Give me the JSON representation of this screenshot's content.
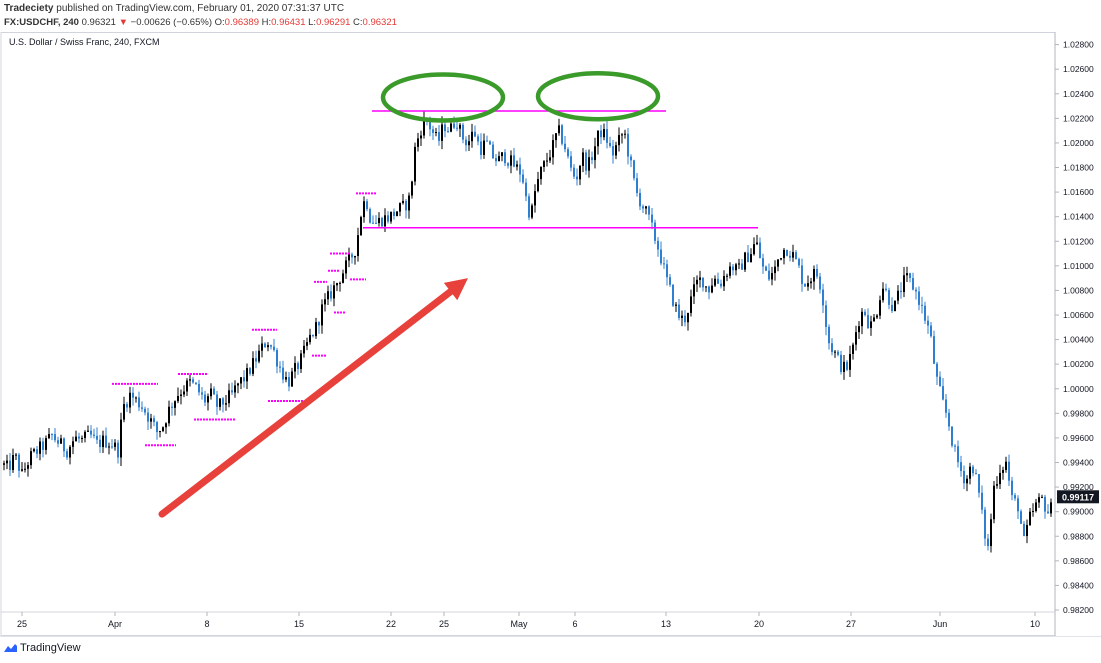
{
  "header": {
    "publisher": "Tradeciety",
    "published_text": "published on TradingView.com, February 01, 2020 07:31:37 UTC",
    "symbol": "FX:USDCHF, 240",
    "last": "0.96321",
    "change": "−0.00626 (−0.65%)",
    "o_label": "O:",
    "o_value": "0.96389",
    "h_label": "H:",
    "h_value": "0.96431",
    "l_label": "L:",
    "l_value": "0.96291",
    "c_label": "C:",
    "c_value": "0.96321"
  },
  "footer": {
    "brand": "TradingView"
  },
  "colors": {
    "bull": "#000000",
    "bear": "#2f7fd0",
    "levels": "#ff00ff",
    "circles": "#3a9a2a",
    "arrow": "#e8403a",
    "price_tag": "#131722"
  },
  "chart_data": {
    "type": "candlestick",
    "title": "U.S. Dollar / Swiss Franc, 240, FXCM",
    "x_ticks": [
      "25",
      "Apr",
      "8",
      "15",
      "22",
      "25",
      "May",
      "6",
      "13",
      "20",
      "27",
      "Jun",
      "10"
    ],
    "y_ticks": [
      "1.02800",
      "1.02600",
      "1.02400",
      "1.02200",
      "1.02000",
      "1.01800",
      "1.01600",
      "1.01400",
      "1.01200",
      "1.01000",
      "1.00800",
      "1.00600",
      "1.00400",
      "1.00200",
      "1.00000",
      "0.99800",
      "0.99600",
      "0.99400",
      "0.99200",
      "0.99000",
      "0.98800",
      "0.98600",
      "0.98400",
      "0.98200"
    ],
    "ylim": [
      0.982,
      1.0287
    ],
    "last_price": "0.99117",
    "path": [
      [
        0,
        0.994
      ],
      [
        8,
        0.9935
      ],
      [
        15,
        0.9945
      ],
      [
        22,
        0.993
      ],
      [
        30,
        0.9944
      ],
      [
        38,
        0.995
      ],
      [
        45,
        0.9955
      ],
      [
        52,
        0.9962
      ],
      [
        60,
        0.9955
      ],
      [
        67,
        0.995
      ],
      [
        75,
        0.996
      ],
      [
        82,
        0.9958
      ],
      [
        90,
        0.9962
      ],
      [
        97,
        0.9955
      ],
      [
        104,
        0.9958
      ],
      [
        112,
        0.9955
      ],
      [
        118,
        0.995
      ],
      [
        123,
        0.9985
      ],
      [
        130,
        0.9995
      ],
      [
        137,
        0.999
      ],
      [
        143,
        0.9985
      ],
      [
        150,
        0.9975
      ],
      [
        157,
        0.9965
      ],
      [
        163,
        0.997
      ],
      [
        170,
        0.9985
      ],
      [
        177,
        0.9995
      ],
      [
        183,
        1.0
      ],
      [
        190,
        1.0005
      ],
      [
        197,
        1.0
      ],
      [
        204,
        0.999
      ],
      [
        211,
        0.9995
      ],
      [
        218,
        0.9985
      ],
      [
        225,
        0.999
      ],
      [
        232,
        0.9995
      ],
      [
        239,
        1.0005
      ],
      [
        246,
        1.001
      ],
      [
        253,
        1.002
      ],
      [
        260,
        1.003
      ],
      [
        267,
        1.004
      ],
      [
        274,
        1.003
      ],
      [
        281,
        1.0015
      ],
      [
        288,
        1.0005
      ],
      [
        295,
        1.0015
      ],
      [
        302,
        1.0025
      ],
      [
        309,
        1.004
      ],
      [
        316,
        1.005
      ],
      [
        322,
        1.0065
      ],
      [
        329,
        1.0075
      ],
      [
        336,
        1.0085
      ],
      [
        343,
        1.0095
      ],
      [
        350,
        1.0105
      ],
      [
        356,
        1.0115
      ],
      [
        362,
        1.0148
      ],
      [
        366,
        1.0155
      ],
      [
        370,
        1.014
      ],
      [
        376,
        1.0135
      ],
      [
        382,
        1.0138
      ],
      [
        390,
        1.014
      ],
      [
        397,
        1.0145
      ],
      [
        404,
        1.0148
      ],
      [
        410,
        1.0155
      ],
      [
        415,
        1.0195
      ],
      [
        420,
        1.021
      ],
      [
        426,
        1.022
      ],
      [
        432,
        1.021
      ],
      [
        438,
        1.02
      ],
      [
        444,
        1.0215
      ],
      [
        450,
        1.021
      ],
      [
        456,
        1.022
      ],
      [
        462,
        1.0205
      ],
      [
        468,
        1.02
      ],
      [
        474,
        1.021
      ],
      [
        480,
        1.0195
      ],
      [
        486,
        1.02
      ],
      [
        492,
        1.019
      ],
      [
        498,
        1.0185
      ],
      [
        504,
        1.019
      ],
      [
        510,
        1.0185
      ],
      [
        516,
        1.018
      ],
      [
        522,
        1.0175
      ],
      [
        527,
        1.015
      ],
      [
        531,
        1.014
      ],
      [
        535,
        1.016
      ],
      [
        540,
        1.0175
      ],
      [
        546,
        1.0185
      ],
      [
        552,
        1.0195
      ],
      [
        558,
        1.021
      ],
      [
        564,
        1.02
      ],
      [
        570,
        1.018
      ],
      [
        576,
        1.017
      ],
      [
        582,
        1.019
      ],
      [
        588,
        1.018
      ],
      [
        594,
        1.0195
      ],
      [
        600,
        1.021
      ],
      [
        606,
        1.0205
      ],
      [
        612,
        1.019
      ],
      [
        618,
        1.02
      ],
      [
        624,
        1.021
      ],
      [
        630,
        1.0185
      ],
      [
        636,
        1.016
      ],
      [
        642,
        1.015
      ],
      [
        648,
        1.014
      ],
      [
        654,
        1.0125
      ],
      [
        660,
        1.011
      ],
      [
        666,
        1.009
      ],
      [
        672,
        1.0075
      ],
      [
        678,
        1.006
      ],
      [
        684,
        1.0055
      ],
      [
        690,
        1.007
      ],
      [
        696,
        1.0085
      ],
      [
        702,
        1.009
      ],
      [
        708,
        1.008
      ],
      [
        714,
        1.009
      ],
      [
        720,
        1.0085
      ],
      [
        726,
        1.0095
      ],
      [
        732,
        1.01
      ],
      [
        738,
        1.0095
      ],
      [
        744,
        1.0105
      ],
      [
        750,
        1.011
      ],
      [
        756,
        1.012
      ],
      [
        762,
        1.01
      ],
      [
        768,
        1.009
      ],
      [
        774,
        1.0095
      ],
      [
        780,
        1.011
      ],
      [
        786,
        1.0115
      ],
      [
        792,
        1.011
      ],
      [
        798,
        1.01
      ],
      [
        804,
        1.0085
      ],
      [
        810,
        1.009
      ],
      [
        816,
        1.0095
      ],
      [
        822,
        1.008
      ],
      [
        828,
        1.004
      ],
      [
        834,
        1.003
      ],
      [
        840,
        1.002
      ],
      [
        846,
        1.0015
      ],
      [
        852,
        1.003
      ],
      [
        858,
        1.0055
      ],
      [
        864,
        1.0065
      ],
      [
        870,
        1.005
      ],
      [
        876,
        1.006
      ],
      [
        882,
        1.0085
      ],
      [
        888,
        1.0075
      ],
      [
        894,
        1.0065
      ],
      [
        900,
        1.008
      ],
      [
        906,
        1.009
      ],
      [
        912,
        1.0085
      ],
      [
        918,
        1.0075
      ],
      [
        924,
        1.006
      ],
      [
        930,
        1.0045
      ],
      [
        936,
        1.001
      ],
      [
        942,
        0.999
      ],
      [
        948,
        0.9975
      ],
      [
        954,
        0.995
      ],
      [
        960,
        0.9935
      ],
      [
        966,
        0.9925
      ],
      [
        972,
        0.994
      ],
      [
        978,
        0.992
      ],
      [
        984,
        0.9885
      ],
      [
        988,
        0.987
      ],
      [
        994,
        0.992
      ],
      [
        1000,
        0.9935
      ],
      [
        1006,
        0.994
      ],
      [
        1012,
        0.991
      ],
      [
        1018,
        0.9905
      ],
      [
        1024,
        0.9875
      ],
      [
        1030,
        0.9895
      ],
      [
        1036,
        0.9905
      ],
      [
        1042,
        0.991
      ],
      [
        1048,
        0.99
      ],
      [
        1054,
        0.9905
      ]
    ],
    "horizontal_lines": [
      {
        "from": 372,
        "to": 666,
        "price": 1.0226
      },
      {
        "from": 363,
        "to": 758,
        "price": 1.0131
      }
    ],
    "level_marks": [
      {
        "from": 112,
        "to": 158,
        "price": 1.0004
      },
      {
        "from": 145,
        "to": 176,
        "price": 0.9954
      },
      {
        "from": 178,
        "to": 207,
        "price": 1.0012
      },
      {
        "from": 194,
        "to": 236,
        "price": 0.9975
      },
      {
        "from": 252,
        "to": 277,
        "price": 1.0048
      },
      {
        "from": 268,
        "to": 304,
        "price": 0.999
      },
      {
        "from": 312,
        "to": 326,
        "price": 1.0027
      },
      {
        "from": 314,
        "to": 327,
        "price": 1.0087
      },
      {
        "from": 328,
        "to": 340,
        "price": 1.0096
      },
      {
        "from": 334,
        "to": 345,
        "price": 1.0062
      },
      {
        "from": 330,
        "to": 350,
        "price": 1.011
      },
      {
        "from": 350,
        "to": 366,
        "price": 1.0089
      },
      {
        "from": 356,
        "to": 377,
        "price": 1.0159
      }
    ],
    "circles": [
      {
        "cx": 443,
        "price": 1.0237
      },
      {
        "cx": 598,
        "price": 1.0238
      }
    ],
    "arrow": {
      "from": [
        162,
        0.9898
      ],
      "to": [
        468,
        1.009
      ]
    }
  }
}
